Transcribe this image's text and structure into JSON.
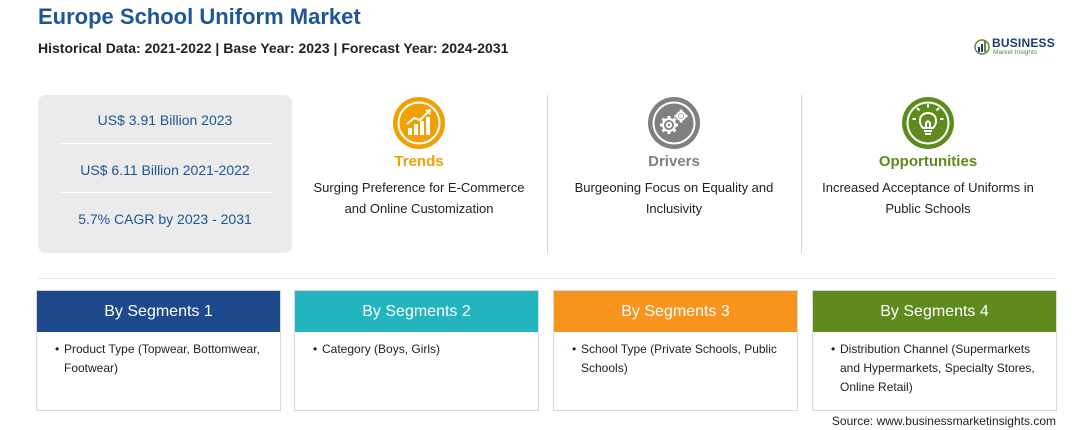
{
  "header": {
    "title": "Europe School Uniform Market",
    "subtitle": "Historical Data: 2021-2022 | Base Year: 2023 | Forecast Year: 2024-2031"
  },
  "logo": {
    "name": "BUSINESS",
    "tagline": "Market Insights"
  },
  "stats": [
    "US$ 3.91 Billion 2023",
    "US$ 6.11 Billion 2021-2022",
    "5.7% CAGR by 2023 - 2031"
  ],
  "pillars": [
    {
      "title": "Trends",
      "text_line1": "Surging Preference for E-Commerce",
      "text_line2": "and Online Customization",
      "color": "#f0a000",
      "icon": "rising-chart-icon"
    },
    {
      "title": "Drivers",
      "text_line1": "Burgeoning Focus on Equality and",
      "text_line2": "Inclusivity",
      "color": "#808080",
      "icon": "gears-icon"
    },
    {
      "title": "Opportunities",
      "text_line1": "Increased Acceptance of Uniforms in",
      "text_line2": "Public Schools",
      "color": "#5e8a1e",
      "icon": "lightbulb-icon"
    }
  ],
  "segments": [
    {
      "title": "By Segments 1",
      "color": "#1e4a8c",
      "bullet": "•",
      "item": "Product Type (Topwear, Bottomwear, Footwear)"
    },
    {
      "title": "By Segments 2",
      "color": "#22b5c0",
      "bullet": "•",
      "item": "Category (Boys, Girls)"
    },
    {
      "title": "By Segments 3",
      "color": "#f7941d",
      "bullet": "•",
      "item": "School Type (Private Schools, Public Schools)"
    },
    {
      "title": "By Segments 4",
      "color": "#5e8a1e",
      "bullet": "•",
      "item": "Distribution Channel (Supermarkets and Hypermarkets, Specialty Stores, Online Retail)"
    }
  ],
  "source": "Source: www.businessmarketinsights.com"
}
